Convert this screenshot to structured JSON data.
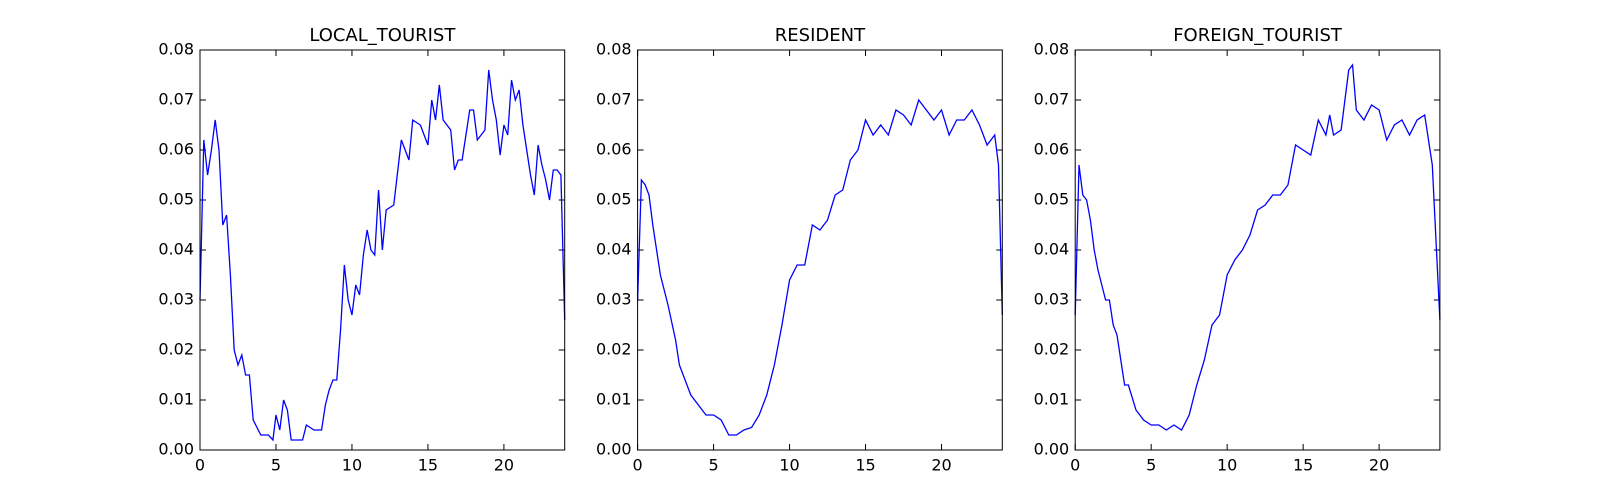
{
  "chart_data": [
    {
      "type": "line",
      "title": "LOCAL_TOURIST",
      "color": "#0000ff",
      "x": [
        0,
        0.25,
        0.5,
        0.75,
        1,
        1.25,
        1.5,
        1.75,
        2,
        2.25,
        2.5,
        2.75,
        3,
        3.25,
        3.5,
        4,
        4.5,
        4.8,
        5,
        5.25,
        5.5,
        5.75,
        6,
        6.5,
        6.75,
        7,
        7.5,
        8,
        8.25,
        8.5,
        8.75,
        9,
        9.25,
        9.5,
        9.75,
        10,
        10.25,
        10.5,
        10.75,
        11,
        11.25,
        11.5,
        11.75,
        12,
        12.25,
        12.75,
        13.25,
        13.75,
        14,
        14.5,
        15,
        15.25,
        15.5,
        15.75,
        16,
        16.5,
        16.75,
        17,
        17.25,
        17.5,
        17.75,
        18,
        18.25,
        18.5,
        18.75,
        19,
        19.25,
        19.5,
        19.75,
        20,
        20.25,
        20.5,
        20.75,
        21,
        21.25,
        21.5,
        21.75,
        22,
        22.25,
        22.5,
        22.75,
        23,
        23.25,
        23.5,
        23.75,
        24
      ],
      "values": [
        0.03,
        0.062,
        0.055,
        0.06,
        0.066,
        0.06,
        0.045,
        0.047,
        0.035,
        0.02,
        0.017,
        0.019,
        0.015,
        0.015,
        0.006,
        0.003,
        0.003,
        0.002,
        0.007,
        0.004,
        0.01,
        0.008,
        0.002,
        0.002,
        0.002,
        0.005,
        0.004,
        0.004,
        0.009,
        0.012,
        0.014,
        0.014,
        0.024,
        0.037,
        0.03,
        0.027,
        0.033,
        0.031,
        0.039,
        0.044,
        0.04,
        0.039,
        0.052,
        0.04,
        0.048,
        0.049,
        0.062,
        0.058,
        0.066,
        0.065,
        0.061,
        0.07,
        0.066,
        0.073,
        0.066,
        0.064,
        0.056,
        0.058,
        0.058,
        0.063,
        0.068,
        0.068,
        0.062,
        0.063,
        0.064,
        0.076,
        0.07,
        0.066,
        0.059,
        0.065,
        0.063,
        0.074,
        0.07,
        0.072,
        0.065,
        0.06,
        0.055,
        0.051,
        0.061,
        0.057,
        0.054,
        0.05,
        0.056,
        0.056,
        0.055,
        0.026
      ],
      "xlim": [
        0,
        24
      ],
      "ylim": [
        0,
        0.08
      ],
      "xticks": [
        0,
        5,
        10,
        15,
        20
      ],
      "yticks": [
        {
          "value": 0,
          "label": "0.00"
        },
        {
          "value": 0.01,
          "label": "0.01"
        },
        {
          "value": 0.02,
          "label": "0.02"
        },
        {
          "value": 0.03,
          "label": "0.03"
        },
        {
          "value": 0.04,
          "label": "0.04"
        },
        {
          "value": 0.05,
          "label": "0.05"
        },
        {
          "value": 0.06,
          "label": "0.06"
        },
        {
          "value": 0.07,
          "label": "0.07"
        },
        {
          "value": 0.08,
          "label": "0.08"
        }
      ]
    },
    {
      "type": "line",
      "title": "RESIDENT",
      "color": "#0000ff",
      "x": [
        0,
        0.25,
        0.5,
        0.75,
        1,
        1.5,
        2,
        2.5,
        2.75,
        3,
        3.5,
        4,
        4.5,
        5,
        5.5,
        6,
        6.5,
        7,
        7.5,
        8,
        8.5,
        9,
        9.5,
        10,
        10.5,
        11,
        11.5,
        12,
        12.5,
        13,
        13.5,
        14,
        14.5,
        15,
        15.5,
        16,
        16.5,
        17,
        17.5,
        18,
        18.5,
        19,
        19.5,
        20,
        20.5,
        21,
        21.5,
        22,
        22.5,
        23,
        23.5,
        23.75,
        24
      ],
      "values": [
        0.03,
        0.054,
        0.053,
        0.051,
        0.045,
        0.035,
        0.029,
        0.022,
        0.017,
        0.015,
        0.011,
        0.009,
        0.007,
        0.007,
        0.006,
        0.003,
        0.003,
        0.004,
        0.0045,
        0.007,
        0.011,
        0.017,
        0.025,
        0.034,
        0.037,
        0.037,
        0.045,
        0.044,
        0.046,
        0.051,
        0.052,
        0.058,
        0.06,
        0.066,
        0.063,
        0.065,
        0.063,
        0.068,
        0.067,
        0.065,
        0.07,
        0.068,
        0.066,
        0.068,
        0.063,
        0.066,
        0.066,
        0.068,
        0.065,
        0.061,
        0.063,
        0.057,
        0.027
      ],
      "xlim": [
        0,
        24
      ],
      "ylim": [
        0,
        0.08
      ],
      "xticks": [
        0,
        5,
        10,
        15,
        20
      ],
      "yticks": [
        {
          "value": 0,
          "label": "0.00"
        },
        {
          "value": 0.01,
          "label": "0.01"
        },
        {
          "value": 0.02,
          "label": "0.02"
        },
        {
          "value": 0.03,
          "label": "0.03"
        },
        {
          "value": 0.04,
          "label": "0.04"
        },
        {
          "value": 0.05,
          "label": "0.05"
        },
        {
          "value": 0.06,
          "label": "0.06"
        },
        {
          "value": 0.07,
          "label": "0.07"
        },
        {
          "value": 0.08,
          "label": "0.08"
        }
      ]
    },
    {
      "type": "line",
      "title": "FOREIGN_TOURIST",
      "color": "#0000ff",
      "x": [
        0,
        0.25,
        0.5,
        0.75,
        1,
        1.25,
        1.5,
        2,
        2.25,
        2.5,
        2.75,
        3,
        3.25,
        3.5,
        4,
        4.5,
        5,
        5.5,
        6,
        6.5,
        7,
        7.5,
        8,
        8.5,
        9,
        9.5,
        10,
        10.5,
        11,
        11.5,
        12,
        12.5,
        13,
        13.5,
        14,
        14.5,
        15,
        15.5,
        16,
        16.5,
        16.75,
        17,
        17.5,
        18,
        18.25,
        18.5,
        19,
        19.5,
        20,
        20.5,
        21,
        21.5,
        22,
        22.5,
        23,
        23.5,
        24
      ],
      "values": [
        0.027,
        0.057,
        0.051,
        0.05,
        0.046,
        0.04,
        0.036,
        0.03,
        0.03,
        0.025,
        0.023,
        0.018,
        0.013,
        0.013,
        0.008,
        0.006,
        0.005,
        0.005,
        0.004,
        0.005,
        0.004,
        0.007,
        0.013,
        0.018,
        0.025,
        0.027,
        0.035,
        0.038,
        0.04,
        0.043,
        0.048,
        0.049,
        0.051,
        0.051,
        0.053,
        0.061,
        0.06,
        0.059,
        0.066,
        0.063,
        0.067,
        0.063,
        0.064,
        0.076,
        0.077,
        0.068,
        0.066,
        0.069,
        0.068,
        0.062,
        0.065,
        0.066,
        0.063,
        0.066,
        0.067,
        0.057,
        0.026
      ],
      "xlim": [
        0,
        24
      ],
      "ylim": [
        0,
        0.08
      ],
      "xticks": [
        0,
        5,
        10,
        15,
        20
      ],
      "yticks": [
        {
          "value": 0,
          "label": "0.00"
        },
        {
          "value": 0.01,
          "label": "0.01"
        },
        {
          "value": 0.02,
          "label": "0.02"
        },
        {
          "value": 0.03,
          "label": "0.03"
        },
        {
          "value": 0.04,
          "label": "0.04"
        },
        {
          "value": 0.05,
          "label": "0.05"
        },
        {
          "value": 0.06,
          "label": "0.06"
        },
        {
          "value": 0.07,
          "label": "0.07"
        },
        {
          "value": 0.08,
          "label": "0.08"
        }
      ]
    }
  ]
}
